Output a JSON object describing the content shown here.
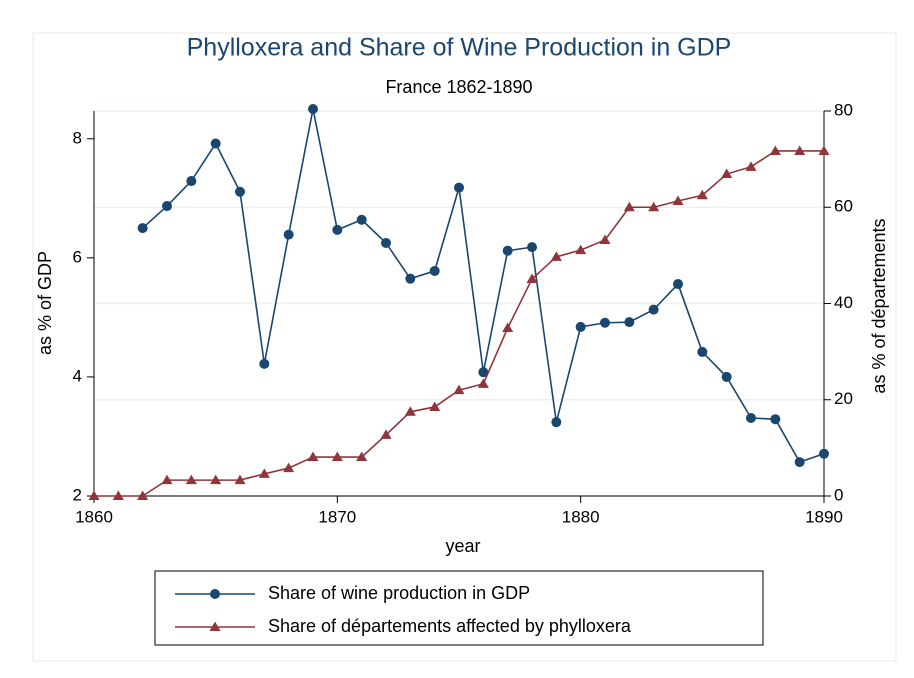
{
  "chart_data": {
    "type": "line",
    "title": "Phylloxera and Share of Wine Production in GDP",
    "subtitle": "France 1862-1890",
    "xlabel": "year",
    "ylabel": "as % of GDP",
    "y2label": "as % of départements",
    "x": [
      1860,
      1861,
      1862,
      1863,
      1864,
      1865,
      1866,
      1867,
      1868,
      1869,
      1870,
      1871,
      1872,
      1873,
      1874,
      1875,
      1876,
      1877,
      1878,
      1879,
      1880,
      1881,
      1882,
      1883,
      1884,
      1885,
      1886,
      1887,
      1888,
      1889,
      1890
    ],
    "series": [
      {
        "name": "Share of wine production in GDP",
        "color": "#1a476f",
        "marker": "circle",
        "values": [
          null,
          null,
          6.5,
          6.87,
          7.29,
          7.92,
          7.11,
          4.22,
          6.39,
          8.5,
          6.47,
          6.64,
          6.25,
          5.65,
          5.78,
          7.18,
          4.08,
          6.12,
          6.18,
          3.24,
          4.84,
          4.91,
          4.92,
          5.13,
          5.56,
          4.42,
          4.0,
          3.31,
          3.29,
          2.57,
          2.71
        ]
      },
      {
        "name": "Share of départements affected by phylloxera",
        "color": "#90353b",
        "marker": "triangle",
        "axis": "y2",
        "values": [
          0,
          0,
          0,
          3.3,
          3.3,
          3.3,
          3.3,
          4.6,
          5.8,
          8.1,
          8.1,
          8.1,
          12.7,
          17.5,
          18.5,
          22.0,
          23.3,
          34.9,
          45.1,
          49.7,
          51.1,
          53.2,
          60.0,
          60.0,
          61.3,
          62.5,
          66.9,
          68.4,
          71.7,
          71.7,
          71.7
        ]
      }
    ],
    "xlim": [
      1860,
      1890
    ],
    "xticks": [
      1860,
      1870,
      1880,
      1890
    ],
    "ylim": [
      2,
      8.5
    ],
    "yticks": [
      2,
      4,
      6,
      8
    ],
    "y2lim": [
      0,
      80
    ],
    "y2ticks": [
      0,
      20,
      40,
      60,
      80
    ],
    "grid": true,
    "legend": "bottom"
  }
}
